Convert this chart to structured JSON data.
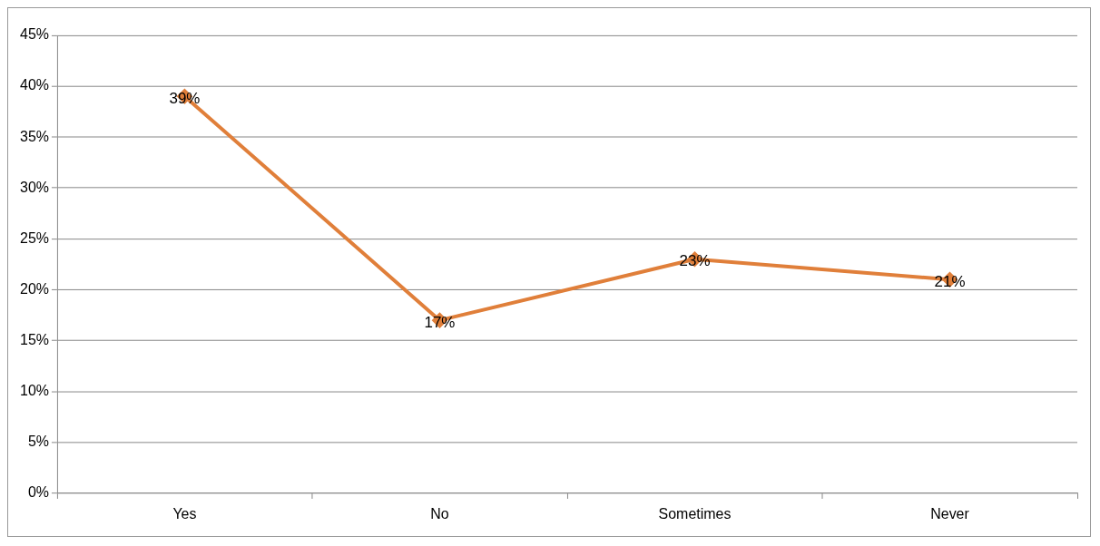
{
  "chart_data": {
    "type": "line",
    "categories": [
      "Yes",
      "No",
      "Sometimes",
      "Never"
    ],
    "series": [
      {
        "color": "#e07f3a",
        "values": [
          39,
          17,
          23,
          21
        ],
        "value_labels": [
          "39%",
          "17%",
          "23%",
          "21%"
        ]
      }
    ],
    "ylim": [
      0,
      45
    ],
    "yticks": [
      {
        "value": 0,
        "label": "0%"
      },
      {
        "value": 5,
        "label": "5%"
      },
      {
        "value": 10,
        "label": "10%"
      },
      {
        "value": 15,
        "label": "15%"
      },
      {
        "value": 20,
        "label": "20%"
      },
      {
        "value": 25,
        "label": "25%"
      },
      {
        "value": 30,
        "label": "30%"
      },
      {
        "value": 35,
        "label": "35%"
      },
      {
        "value": 40,
        "label": "40%"
      },
      {
        "value": 45,
        "label": "45%"
      }
    ],
    "grid": "y",
    "legend": false,
    "marker": "diamond",
    "line_style": "solid"
  }
}
